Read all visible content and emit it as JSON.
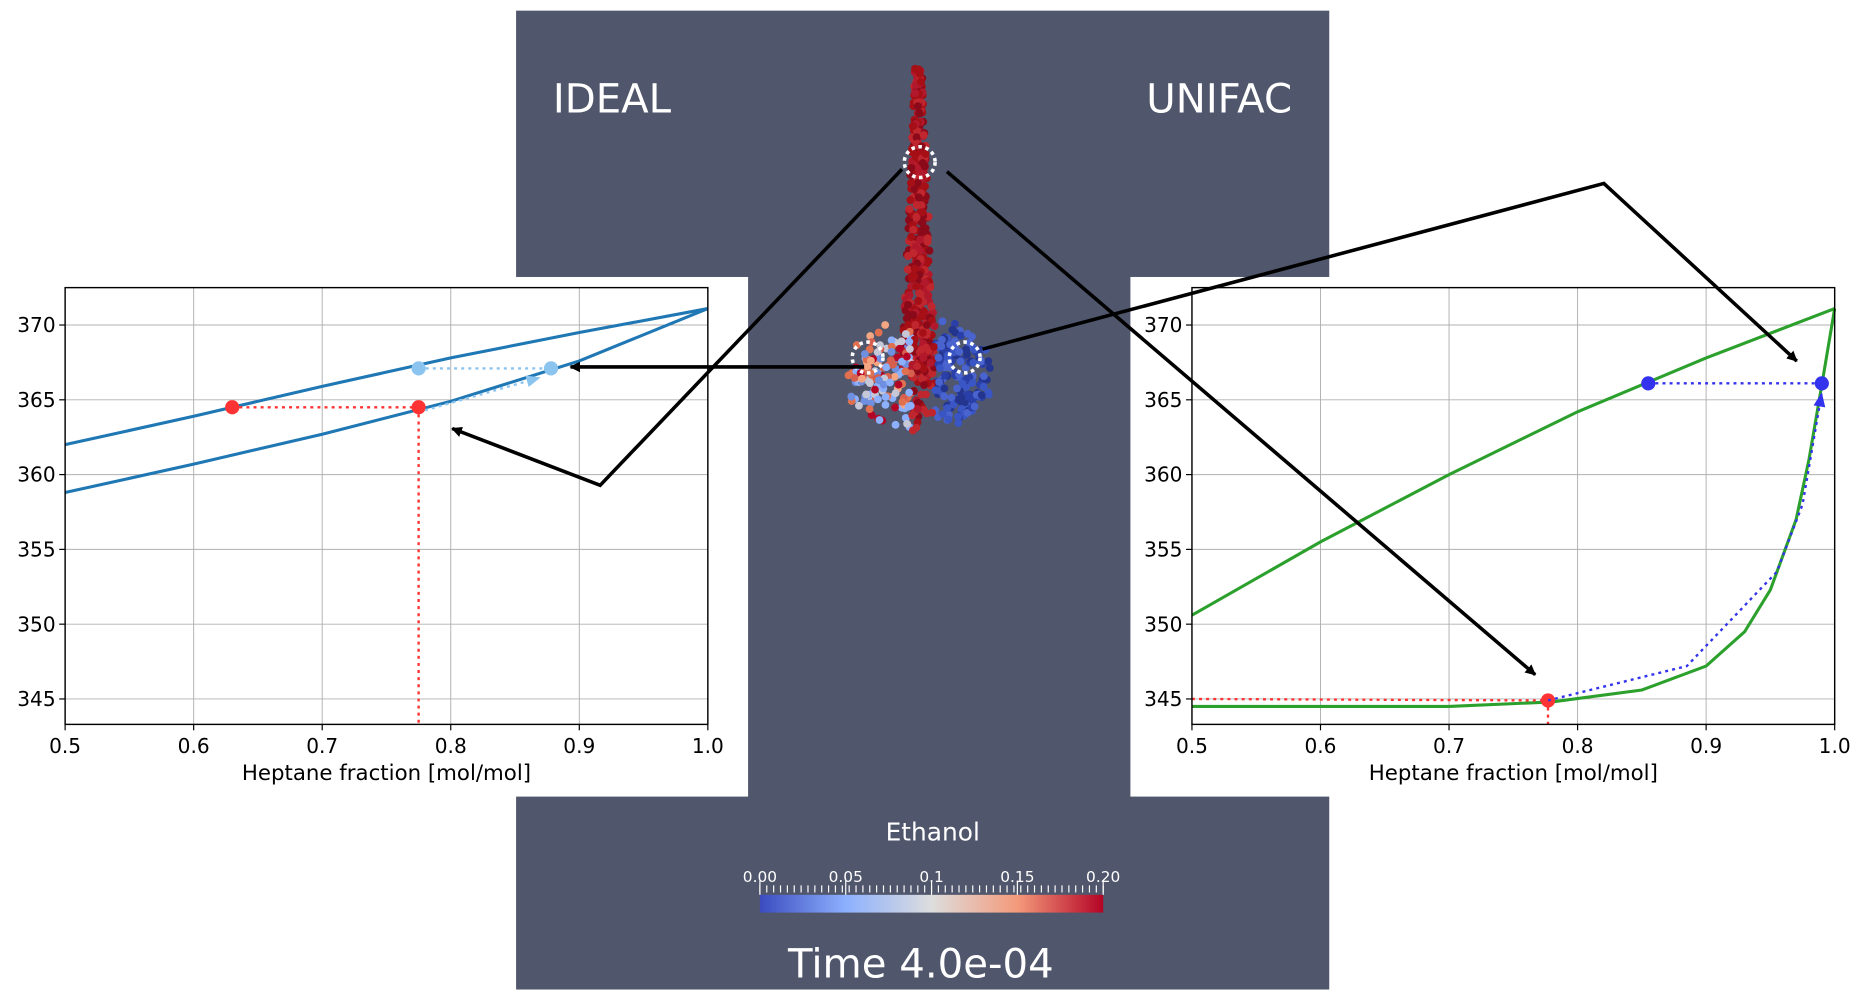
{
  "chart_data": [
    {
      "type": "line",
      "xlabel": "Heptane fraction [mol/mol]",
      "xlim": [
        0.5,
        1.0
      ],
      "ylim": [
        343.3,
        372.5
      ],
      "xticks": [
        0.5,
        0.6,
        0.7,
        0.8,
        0.9,
        {
          "value": 1,
          "label": "1.0"
        }
      ],
      "yticks": [
        345,
        350,
        355,
        360,
        365,
        370
      ],
      "grid": true,
      "series": [
        {
          "color": "#1f77b4",
          "linestyle": "solid",
          "x": [
            0.5,
            0.6,
            0.7,
            0.8,
            0.9,
            1.0
          ],
          "values": [
            362,
            363.9,
            365.9,
            367.8,
            369.5,
            371.1
          ]
        },
        {
          "color": "#1f77b4",
          "linestyle": "solid",
          "x": [
            0.5,
            0.6,
            0.7,
            0.8,
            0.9,
            1.0
          ],
          "values": [
            358.8,
            360.7,
            362.7,
            364.9,
            367.6,
            371.1
          ]
        },
        {
          "color": "#ff3333",
          "linestyle": "dotted",
          "marker": true,
          "x": [
            0.63,
            0.775
          ],
          "values": [
            364.5,
            364.5
          ]
        },
        {
          "color": "#ff3333",
          "linestyle": "dotted",
          "x": [
            0.775,
            0.775
          ],
          "values": [
            364.5,
            343.3
          ]
        },
        {
          "color": "#8cc4f0",
          "linestyle": "dotted",
          "marker": true,
          "x": [
            0.775,
            0.878
          ],
          "values": [
            367.1,
            367.1
          ]
        },
        {
          "color": "#8cc4f0",
          "linestyle": "dotted",
          "arrow": true,
          "x": [
            0.78,
            0.87
          ],
          "values": [
            364.3,
            366.5
          ]
        }
      ]
    },
    {
      "type": "line",
      "xlabel": "Heptane fraction [mol/mol]",
      "xlim": [
        0.5,
        1.0
      ],
      "ylim": [
        343.3,
        372.5
      ],
      "xticks": [
        0.5,
        0.6,
        0.7,
        0.8,
        0.9,
        {
          "value": 1,
          "label": "1.0"
        }
      ],
      "yticks": [
        345,
        350,
        355,
        360,
        365,
        370
      ],
      "grid": true,
      "series": [
        {
          "color": "#2ca02c",
          "linestyle": "solid",
          "x": [
            0.5,
            0.6,
            0.7,
            0.8,
            0.9,
            1.0
          ],
          "values": [
            350.6,
            355.5,
            360,
            364.2,
            367.8,
            371.1
          ]
        },
        {
          "color": "#2ca02c",
          "linestyle": "solid",
          "x": [
            0.5,
            0.6,
            0.7,
            0.78,
            0.85,
            0.9,
            0.93,
            0.95,
            0.97,
            0.98,
            0.99,
            1.0
          ],
          "values": [
            344.5,
            344.5,
            344.5,
            344.8,
            345.6,
            347.2,
            349.5,
            352.3,
            357,
            361,
            366,
            371.1
          ]
        },
        {
          "color": "#ff3333",
          "linestyle": "dotted",
          "x": [
            0.5,
            0.777
          ],
          "values": [
            345.0,
            344.9
          ]
        },
        {
          "color": "#ff3333",
          "linestyle": "dotted",
          "marker": true,
          "x": [
            0.777,
            0.777
          ],
          "values": [
            344.9,
            343.3
          ]
        },
        {
          "color": "#3333ee",
          "linestyle": "dotted",
          "marker": true,
          "x": [
            0.855,
            0.99
          ],
          "values": [
            366.1,
            366.1
          ]
        },
        {
          "color": "#3333ee",
          "linestyle": "dotted",
          "arrow": true,
          "x": [
            0.777,
            0.885,
            0.955,
            0.975,
            0.99
          ],
          "values": [
            344.9,
            347.2,
            353.5,
            358,
            365.5
          ]
        }
      ]
    }
  ],
  "scene": {
    "left_label": "IDEAL",
    "right_label": "UNIFAC",
    "colorbar": {
      "title": "Ethanol",
      "clim": [
        0,
        0.2
      ],
      "colormap": [
        "#3b4cc0",
        "#8db0fe",
        "#dddddd",
        "#f49a7b",
        "#b40426"
      ],
      "ticks": [
        {
          "value": 0,
          "label": "0.00"
        },
        {
          "value": 0.05,
          "label": "0.05"
        },
        0.1,
        0.15,
        {
          "value": 0.2,
          "label": "0.20"
        }
      ]
    },
    "time_label": "Time 4.0e-04"
  }
}
